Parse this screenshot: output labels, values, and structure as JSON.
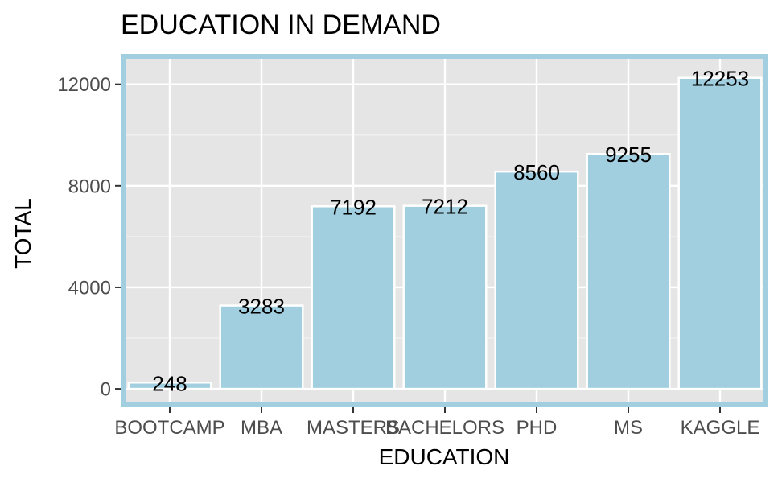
{
  "chart_data": {
    "type": "bar",
    "title": "EDUCATION IN DEMAND",
    "xlabel": "EDUCATION",
    "ylabel": "TOTAL",
    "categories": [
      "BOOTCAMP",
      "MBA",
      "MASTERS",
      "BACHELORS",
      "PHD",
      "MS",
      "KAGGLE"
    ],
    "values": [
      248,
      3283,
      7192,
      7212,
      8560,
      9255,
      12253
    ],
    "data_labels": [
      "248",
      "3283",
      "7192",
      "7212",
      "8560",
      "9255",
      "12253"
    ],
    "yticks": [
      0,
      4000,
      8000,
      12000
    ],
    "ytick_labels": [
      "0",
      "4000",
      "8000",
      "12000"
    ],
    "ylim": [
      -600,
      13100
    ],
    "grid": true,
    "legend": "none",
    "colors": {
      "bar_fill": "#a1cfe0",
      "bar_outline": "#ffffff",
      "panel_background": "#e5e5e5",
      "panel_border": "#a1cfe0",
      "grid_major": "#ffffff",
      "grid_minor": "#f2f2f2",
      "tick_text": "#4d4d4d",
      "tick_mark": "#333333",
      "text": "#000000"
    }
  }
}
